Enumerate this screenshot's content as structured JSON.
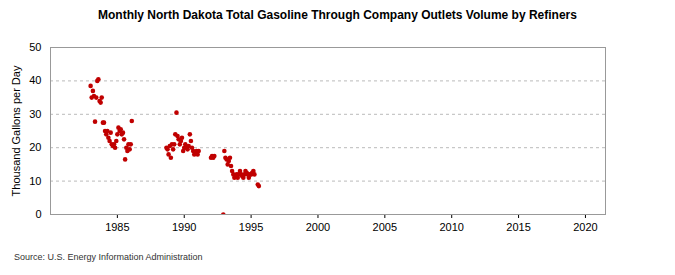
{
  "chart_data": {
    "type": "scatter",
    "title": "Monthly North Dakota Total Gasoline Through Company Outlets Volume by Refiners",
    "y_label": "Thousand Gallons per Day",
    "source": "Source: U.S. Energy Information Administration",
    "color": "#c00000",
    "marker": "circle",
    "grid": true,
    "xlim": [
      1980,
      2021.5
    ],
    "xticks": [
      1985,
      1990,
      1995,
      2000,
      2005,
      2010,
      2015,
      2020
    ],
    "ylim": [
      0,
      50
    ],
    "yticks": [
      0,
      10,
      20,
      30,
      40,
      50
    ],
    "x": [
      1983.0,
      1983.08,
      1983.17,
      1983.25,
      1983.33,
      1983.42,
      1983.5,
      1983.58,
      1983.67,
      1983.75,
      1983.83,
      1983.92,
      1984.0,
      1984.08,
      1984.17,
      1984.25,
      1984.33,
      1984.42,
      1984.5,
      1984.58,
      1984.67,
      1984.75,
      1984.83,
      1984.92,
      1985.0,
      1985.08,
      1985.17,
      1985.25,
      1985.33,
      1985.42,
      1985.5,
      1985.58,
      1985.67,
      1985.75,
      1985.83,
      1985.92,
      1986.0,
      1986.08,
      1988.67,
      1988.75,
      1988.83,
      1988.92,
      1989.0,
      1989.08,
      1989.17,
      1989.25,
      1989.33,
      1989.42,
      1989.5,
      1989.58,
      1989.67,
      1989.75,
      1989.83,
      1989.92,
      1990.0,
      1990.08,
      1990.17,
      1990.25,
      1990.33,
      1990.42,
      1990.5,
      1990.58,
      1990.67,
      1990.75,
      1990.83,
      1990.92,
      1991.0,
      1991.08,
      1992.0,
      1992.08,
      1992.17,
      1992.25,
      1992.92,
      1993.0,
      1993.08,
      1993.17,
      1993.25,
      1993.33,
      1993.42,
      1993.5,
      1993.58,
      1993.67,
      1993.75,
      1993.83,
      1993.92,
      1994.0,
      1994.08,
      1994.17,
      1994.25,
      1994.33,
      1994.42,
      1994.5,
      1994.58,
      1994.67,
      1994.75,
      1994.83,
      1994.92,
      1995.0,
      1995.08,
      1995.17,
      1995.25,
      1995.5,
      1995.58
    ],
    "values": [
      38.5,
      35,
      37,
      35.5,
      27.8,
      35,
      40,
      40.5,
      34,
      33.5,
      35,
      27.5,
      27.5,
      25,
      24,
      25,
      23,
      22,
      24.5,
      21,
      20.5,
      21,
      20,
      22,
      24,
      26,
      25,
      25.5,
      24,
      24.5,
      22.5,
      16.5,
      20,
      19,
      21,
      19.5,
      21,
      28,
      20,
      19.5,
      18,
      20.5,
      17,
      21,
      19.5,
      21,
      24,
      30.5,
      23.5,
      22.5,
      21,
      22,
      23,
      19,
      20,
      21,
      20,
      19.5,
      20.5,
      24,
      22,
      20,
      19,
      18,
      18.5,
      19,
      18,
      19,
      17,
      17.5,
      17,
      17.5,
      0,
      19,
      17,
      16.5,
      15,
      16,
      17,
      14.5,
      13,
      12,
      11,
      11.5,
      12,
      11,
      12,
      13,
      12,
      11.5,
      11,
      12,
      13,
      12.5,
      12,
      11,
      12,
      12,
      12.5,
      13,
      12,
      9,
      8.5
    ]
  }
}
